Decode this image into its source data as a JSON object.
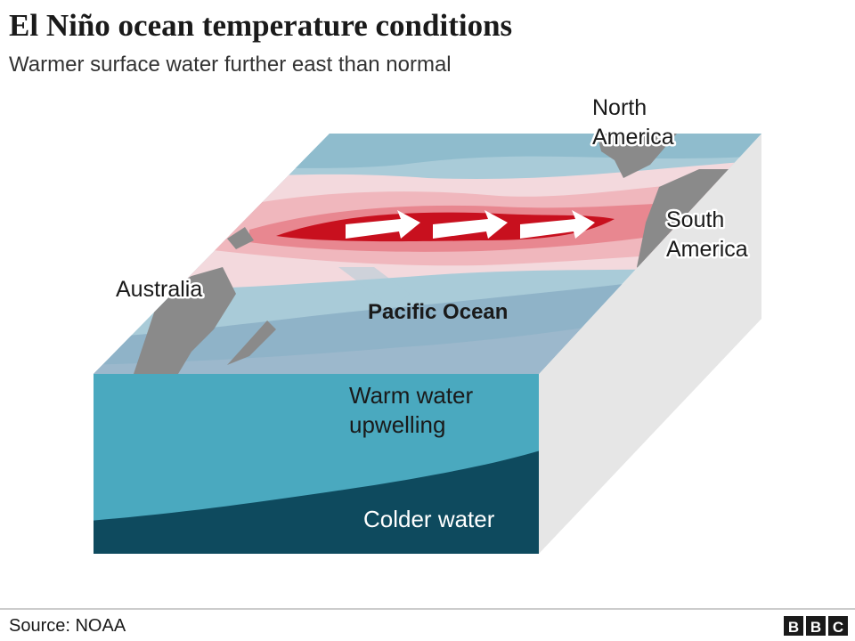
{
  "header": {
    "title": "El Niño ocean temperature conditions",
    "subtitle": "Warmer surface water further east than normal"
  },
  "labels": {
    "north_america": [
      "North",
      "America"
    ],
    "south_america": [
      "South",
      "America"
    ],
    "australia": "Australia",
    "ocean": "Pacific Ocean",
    "warm_water": [
      "Warm water",
      "upwelling"
    ],
    "cold_water": "Colder water"
  },
  "footer": {
    "source": "Source: NOAA",
    "logo": [
      "B",
      "B",
      "C"
    ]
  }
}
